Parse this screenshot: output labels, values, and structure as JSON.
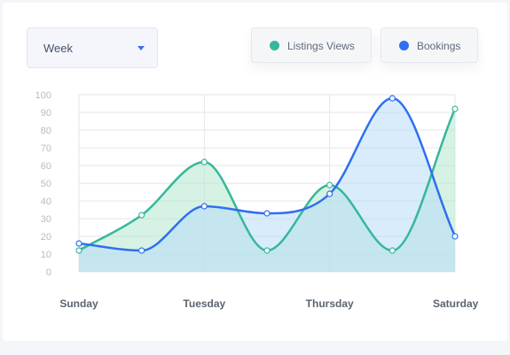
{
  "filter": {
    "selected": "Week"
  },
  "legend": [
    {
      "label": "Listings Views",
      "color": "#37b79a"
    },
    {
      "label": "Bookings",
      "color": "#2f6ff0"
    }
  ],
  "colors": {
    "views_fill": "#b4e8cf",
    "bookings_fill": "#b8dcf8",
    "grid": "#e4e6ea"
  },
  "chart_data": {
    "type": "area",
    "x": [
      "Sunday",
      "",
      "Tuesday",
      "",
      "Thursday",
      "",
      "Saturday"
    ],
    "x_tick_labels": [
      "Sunday",
      "Tuesday",
      "Thursday",
      "Saturday"
    ],
    "y_ticks": [
      0,
      10,
      20,
      30,
      40,
      50,
      60,
      70,
      80,
      90,
      100
    ],
    "ylim": [
      0,
      100
    ],
    "grid": true,
    "series": [
      {
        "name": "Listings Views",
        "values": [
          12,
          32,
          62,
          12,
          49,
          12,
          92
        ]
      },
      {
        "name": "Bookings",
        "values": [
          16,
          12,
          37,
          33,
          44,
          98,
          20
        ]
      }
    ]
  }
}
